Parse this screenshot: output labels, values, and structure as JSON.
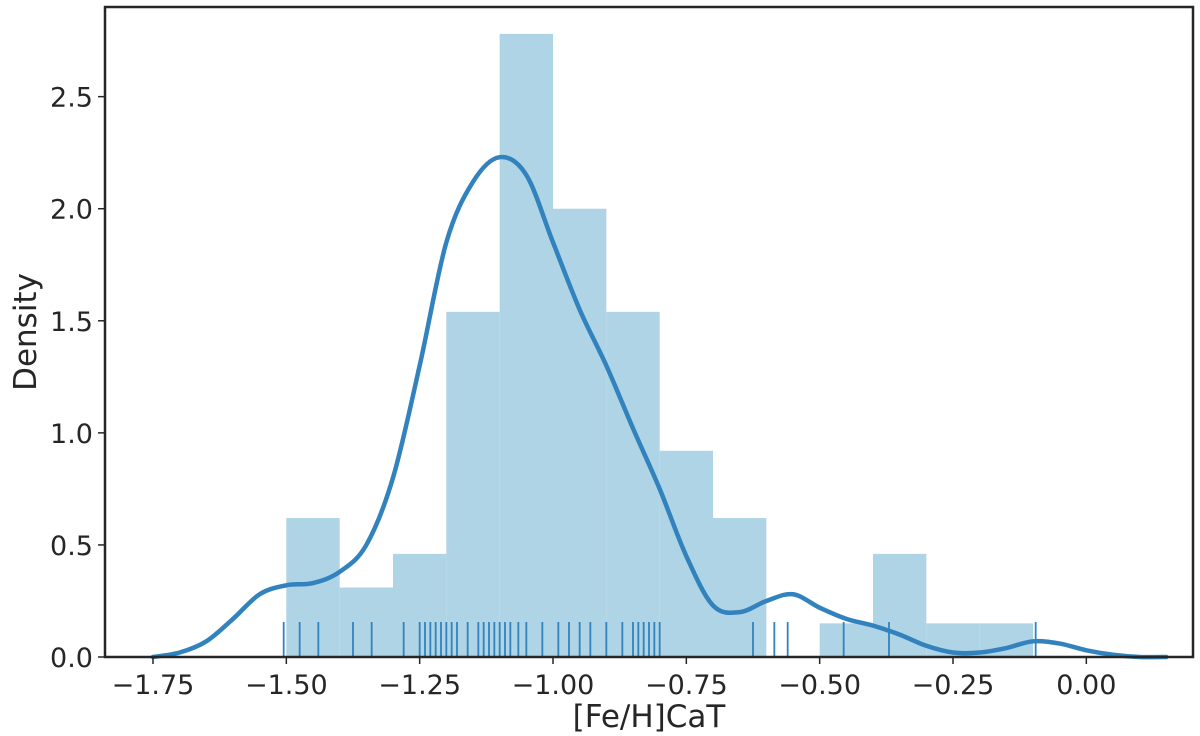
{
  "chart_data": {
    "type": "bar",
    "title": "",
    "xlabel": "[Fe/H]CaT",
    "ylabel": "Density",
    "xlim": [
      -1.84,
      0.2
    ],
    "ylim": [
      0,
      2.9
    ],
    "grid": false,
    "x_ticks": [
      -1.75,
      -1.5,
      -1.25,
      -1.0,
      -0.75,
      -0.5,
      -0.25,
      0.0
    ],
    "x_tick_labels": [
      "−1.75",
      "−1.50",
      "−1.25",
      "−1.00",
      "−0.75",
      "−0.50",
      "−0.25",
      "0.00"
    ],
    "y_ticks": [
      0.0,
      0.5,
      1.0,
      1.5,
      2.0,
      2.5
    ],
    "y_tick_labels": [
      "0.0",
      "0.5",
      "1.0",
      "1.5",
      "2.0",
      "2.5"
    ],
    "histogram": {
      "bin_edges": [
        -1.5,
        -1.4,
        -1.3,
        -1.2,
        -1.1,
        -1.0,
        -0.9,
        -0.8,
        -0.7,
        -0.6,
        -0.5,
        -0.4,
        -0.3,
        -0.2,
        -0.1,
        0.0
      ],
      "bin_edges_note": "",
      "bins": [
        {
          "start": -1.5,
          "end": -1.4,
          "density": 0.62
        },
        {
          "start": -1.4,
          "end": -1.3,
          "density": 0.31
        },
        {
          "start": -1.3,
          "end": -1.2,
          "density": 0.46
        },
        {
          "start": -1.2,
          "end": -1.1,
          "density": 1.54
        },
        {
          "start": -1.1,
          "end": -1.0,
          "density": 2.78
        },
        {
          "start": -1.0,
          "end": -0.9,
          "density": 2.0
        },
        {
          "start": -0.9,
          "end": -0.8,
          "density": 1.54
        },
        {
          "start": -0.8,
          "end": -0.7,
          "density": 0.92
        },
        {
          "start": -0.7,
          "end": -0.6,
          "density": 0.62
        },
        {
          "start": -0.6,
          "end": -0.5,
          "density": 0.0
        },
        {
          "start": -0.5,
          "end": -0.4,
          "density": 0.15
        },
        {
          "start": -0.4,
          "end": -0.3,
          "density": 0.46
        },
        {
          "start": -0.3,
          "end": -0.2,
          "density": 0.15
        },
        {
          "start": -0.2,
          "end": -0.1,
          "density": 0.15
        },
        {
          "start": -0.1,
          "end": 0.0,
          "density": 0.0
        }
      ],
      "color": "#9ecae1"
    },
    "kde": {
      "x": [
        -1.75,
        -1.7,
        -1.65,
        -1.6,
        -1.55,
        -1.5,
        -1.45,
        -1.4,
        -1.35,
        -1.3,
        -1.25,
        -1.2,
        -1.15,
        -1.1,
        -1.05,
        -1.0,
        -0.95,
        -0.9,
        -0.85,
        -0.8,
        -0.75,
        -0.7,
        -0.65,
        -0.6,
        -0.55,
        -0.5,
        -0.45,
        -0.4,
        -0.35,
        -0.3,
        -0.25,
        -0.2,
        -0.15,
        -0.1,
        -0.05,
        0.0,
        0.05,
        0.1,
        0.15
      ],
      "y": [
        0.0,
        0.02,
        0.07,
        0.17,
        0.28,
        0.32,
        0.33,
        0.38,
        0.5,
        0.8,
        1.3,
        1.85,
        2.12,
        2.23,
        2.15,
        1.85,
        1.55,
        1.3,
        1.02,
        0.75,
        0.45,
        0.23,
        0.2,
        0.25,
        0.28,
        0.22,
        0.17,
        0.14,
        0.1,
        0.05,
        0.02,
        0.02,
        0.04,
        0.07,
        0.06,
        0.03,
        0.01,
        0.0,
        0.0
      ],
      "color": "#3182bd"
    },
    "rug": {
      "x": [
        -1.505,
        -1.475,
        -1.44,
        -1.375,
        -1.34,
        -1.28,
        -1.25,
        -1.24,
        -1.23,
        -1.22,
        -1.21,
        -1.2,
        -1.19,
        -1.18,
        -1.16,
        -1.14,
        -1.13,
        -1.12,
        -1.11,
        -1.1,
        -1.09,
        -1.08,
        -1.065,
        -1.05,
        -1.02,
        -0.99,
        -0.97,
        -0.95,
        -0.93,
        -0.9,
        -0.87,
        -0.85,
        -0.84,
        -0.83,
        -0.82,
        -0.81,
        -0.8,
        -0.625,
        -0.585,
        -0.56,
        -0.455,
        -0.37,
        -0.095
      ],
      "color": "#3182bd"
    }
  }
}
